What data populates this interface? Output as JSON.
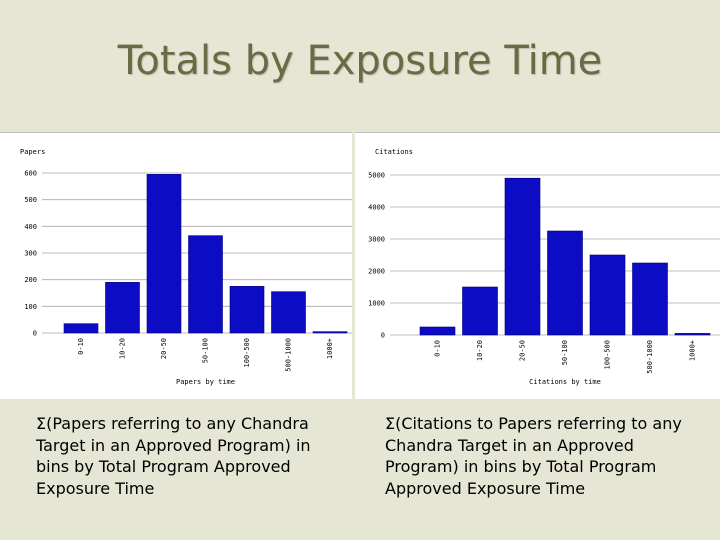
{
  "slide": {
    "title": "Totals by Exposure Time"
  },
  "captions": {
    "left": "Σ(Papers referring to any Chandra Target in an Approved Program) in bins by Total Program Approved Exposure Time",
    "right": "Σ(Citations to Papers referring to any Chandra Target in an Approved Program) in bins by Total Program Approved Exposure Time"
  },
  "chart_data": [
    {
      "type": "bar",
      "title": "",
      "ylabel": "Papers",
      "xlabel": "Papers by time",
      "categories": [
        "0-10",
        "10-20",
        "20-50",
        "50-100",
        "100-500",
        "500-1000",
        "1000+"
      ],
      "values": [
        35,
        190,
        595,
        365,
        175,
        155,
        5
      ],
      "ylim": [
        0,
        600
      ],
      "yticks": [
        0,
        100,
        200,
        300,
        400,
        500,
        600
      ],
      "grid": true,
      "bar_color": "#0c0cc4"
    },
    {
      "type": "bar",
      "title": "",
      "ylabel": "Citations",
      "xlabel": "Citations by time",
      "categories": [
        "0-10",
        "10-20",
        "20-50",
        "50-100",
        "100-500",
        "500-1000",
        "1000+"
      ],
      "values": [
        250,
        1500,
        4900,
        3250,
        2500,
        2250,
        50
      ],
      "ylim": [
        0,
        5000
      ],
      "yticks": [
        0,
        1000,
        2000,
        3000,
        4000,
        5000
      ],
      "grid": true,
      "bar_color": "#0c0cc4"
    }
  ]
}
